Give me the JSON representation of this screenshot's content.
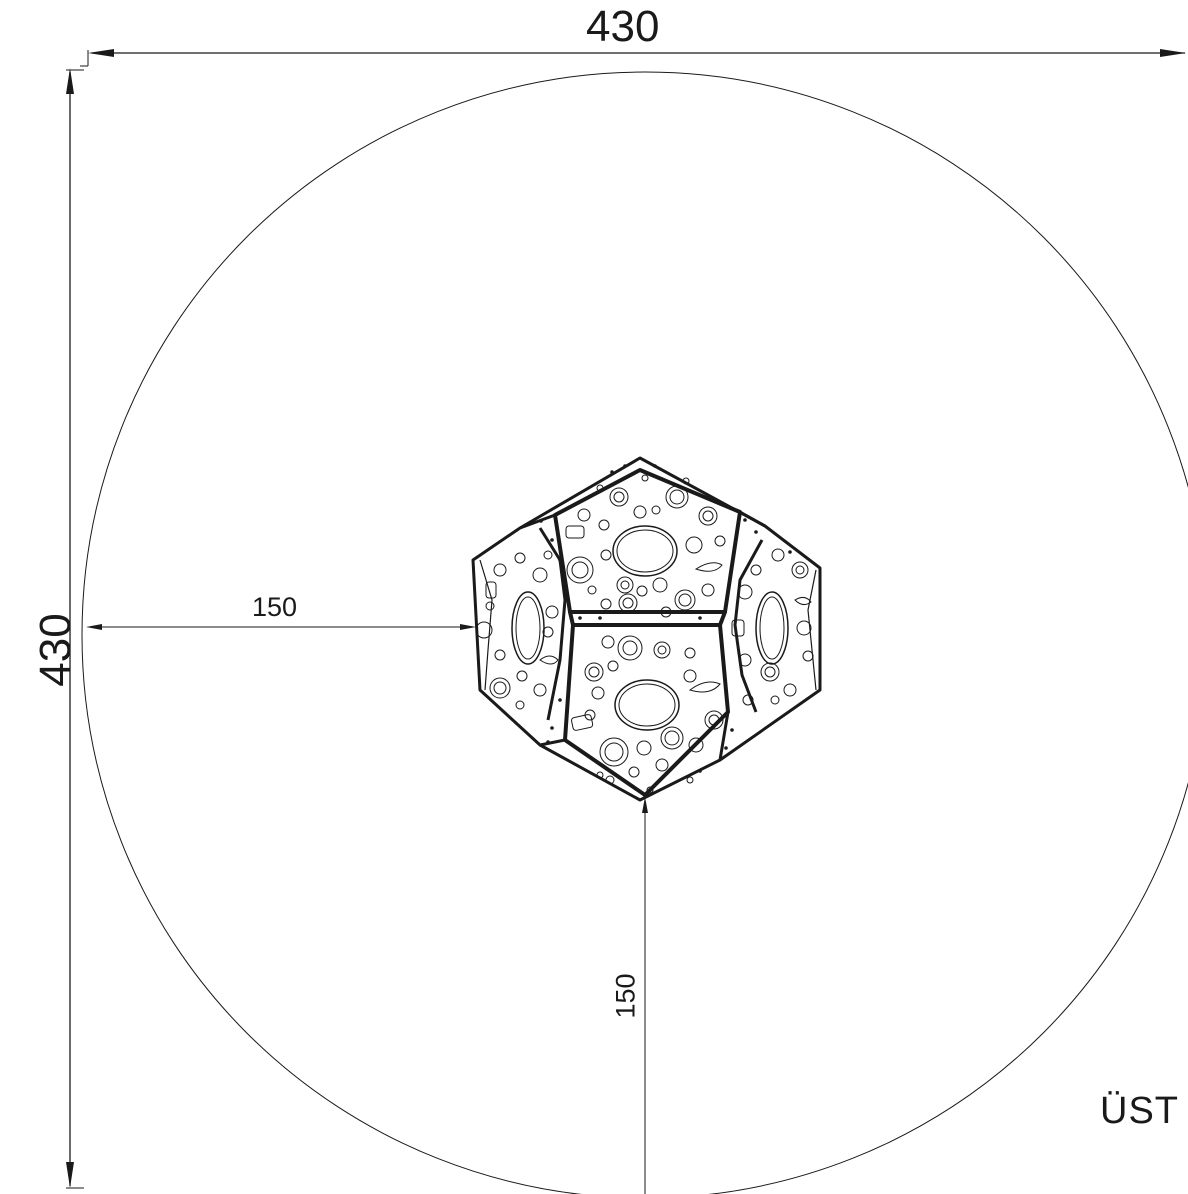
{
  "drawing": {
    "overall_width": "430",
    "overall_depth": "430",
    "clearance_horizontal": "150",
    "clearance_vertical": "150",
    "view_label": "ÜST"
  },
  "colors": {
    "line": "#1a1a1a",
    "background": "#ffffff"
  }
}
